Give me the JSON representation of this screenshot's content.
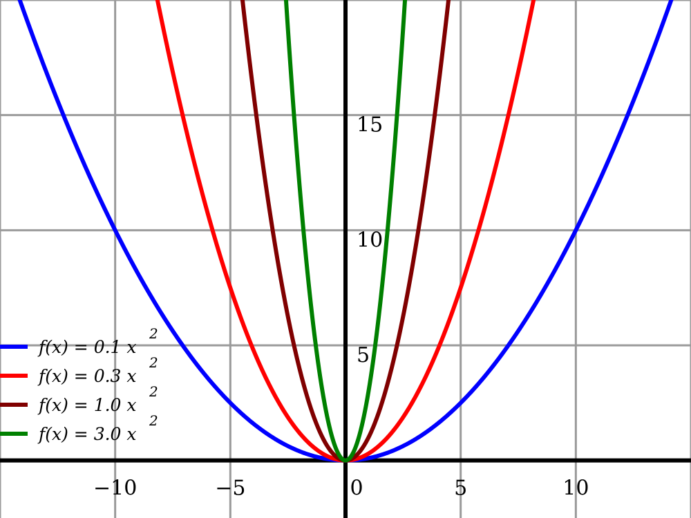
{
  "chart_data": {
    "type": "line",
    "title": "",
    "xlabel": "",
    "ylabel": "",
    "xlim": [
      -15,
      15
    ],
    "ylim": [
      -2.5,
      20
    ],
    "grid": true,
    "grid_step": 5,
    "x_ticks": [
      {
        "value": -10,
        "label": "−10"
      },
      {
        "value": -5,
        "label": "−5"
      },
      {
        "value": 0,
        "label": "0"
      },
      {
        "value": 5,
        "label": "5"
      },
      {
        "value": 10,
        "label": "10"
      }
    ],
    "y_ticks": [
      {
        "value": 5,
        "label": "5"
      },
      {
        "value": 10,
        "label": "10"
      },
      {
        "value": 15,
        "label": "15"
      }
    ],
    "legend_position": "bottom-left",
    "series": [
      {
        "name": "f(x) = 0.1 x",
        "superscript": "2",
        "coefficient": 0.1,
        "formula": "0.1*x^2",
        "color": "#0000ff"
      },
      {
        "name": "f(x) = 0.3 x",
        "superscript": "2",
        "coefficient": 0.3,
        "formula": "0.3*x^2",
        "color": "#ff0000"
      },
      {
        "name": "f(x) = 1.0 x",
        "superscript": "2",
        "coefficient": 1.0,
        "formula": "1.0*x^2",
        "color": "#800000"
      },
      {
        "name": "f(x) = 3.0 x",
        "superscript": "2",
        "coefficient": 3.0,
        "formula": "3.0*x^2",
        "color": "#008000"
      }
    ]
  }
}
